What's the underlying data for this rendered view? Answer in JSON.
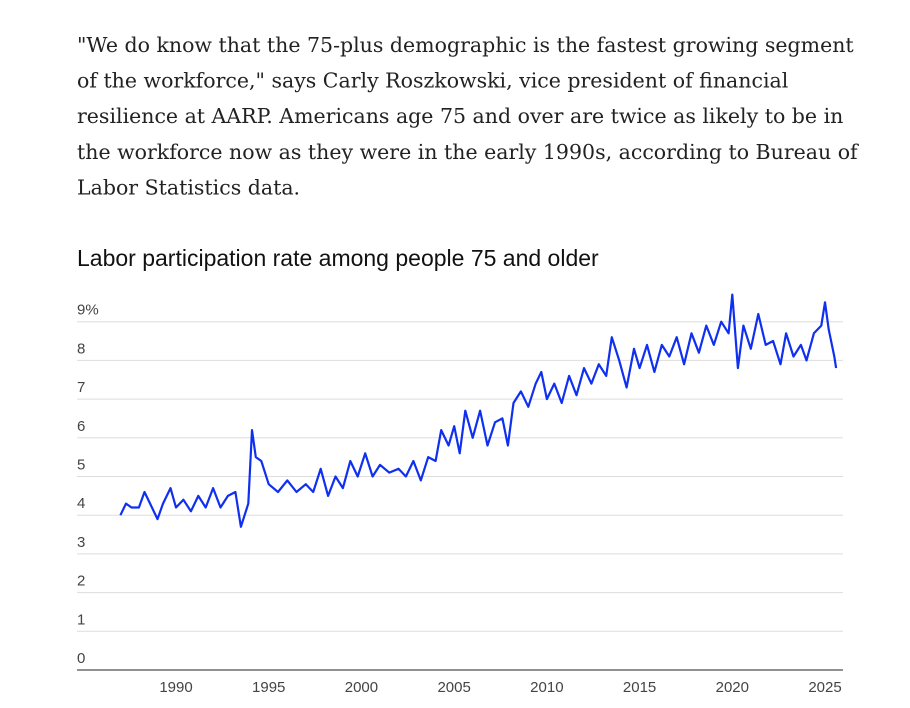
{
  "paragraph": {
    "lines": [
      "\"We do know that the 75-plus demographic is the fastest growing segment",
      "of the workforce,\" says Carly Roszkowski, vice president of financial",
      "resilience at AARP. Americans age 75 and over are twice as likely to be in",
      "the workforce now as they were in the early 1990s, according to Bureau of",
      "Labor Statistics data."
    ]
  },
  "chart_data": {
    "type": "line",
    "title": "Labor participation rate among people 75 and older",
    "x": [
      1987.0,
      1987.3,
      1987.6,
      1988.0,
      1988.3,
      1988.6,
      1989.0,
      1989.3,
      1989.7,
      1990.0,
      1990.4,
      1990.8,
      1991.2,
      1991.6,
      1992.0,
      1992.4,
      1992.8,
      1993.2,
      1993.5,
      1993.9,
      1994.1,
      1994.3,
      1994.6,
      1995.0,
      1995.5,
      1996.0,
      1996.5,
      1997.0,
      1997.4,
      1997.8,
      1998.2,
      1998.6,
      1999.0,
      1999.4,
      1999.8,
      2000.2,
      2000.6,
      2001.0,
      2001.5,
      2002.0,
      2002.4,
      2002.8,
      2003.2,
      2003.6,
      2004.0,
      2004.3,
      2004.7,
      2005.0,
      2005.3,
      2005.6,
      2006.0,
      2006.4,
      2006.8,
      2007.2,
      2007.6,
      2007.9,
      2008.2,
      2008.6,
      2009.0,
      2009.4,
      2009.7,
      2010.0,
      2010.4,
      2010.8,
      2011.2,
      2011.6,
      2012.0,
      2012.4,
      2012.8,
      2013.2,
      2013.5,
      2013.9,
      2014.3,
      2014.7,
      2015.0,
      2015.4,
      2015.8,
      2016.2,
      2016.6,
      2017.0,
      2017.4,
      2017.8,
      2018.2,
      2018.6,
      2019.0,
      2019.4,
      2019.8,
      2020.0,
      2020.3,
      2020.6,
      2021.0,
      2021.4,
      2021.8,
      2022.2,
      2022.6,
      2022.9,
      2023.3,
      2023.7,
      2024.0,
      2024.4,
      2024.8,
      2025.0,
      2025.2,
      2025.5,
      2025.6
    ],
    "series": [
      {
        "color": "#1030f0",
        "values": [
          4.0,
          4.3,
          4.2,
          4.2,
          4.6,
          4.3,
          3.9,
          4.3,
          4.7,
          4.2,
          4.4,
          4.1,
          4.5,
          4.2,
          4.7,
          4.2,
          4.5,
          4.6,
          3.7,
          4.3,
          6.2,
          5.5,
          5.4,
          4.8,
          4.6,
          4.9,
          4.6,
          4.8,
          4.6,
          5.2,
          4.5,
          5.0,
          4.7,
          5.4,
          5.0,
          5.6,
          5.0,
          5.3,
          5.1,
          5.2,
          5.0,
          5.4,
          4.9,
          5.5,
          5.4,
          6.2,
          5.8,
          6.3,
          5.6,
          6.7,
          6.0,
          6.7,
          5.8,
          6.4,
          6.5,
          5.8,
          6.9,
          7.2,
          6.8,
          7.4,
          7.7,
          7.0,
          7.4,
          6.9,
          7.6,
          7.1,
          7.8,
          7.4,
          7.9,
          7.6,
          8.6,
          8.0,
          7.3,
          8.3,
          7.8,
          8.4,
          7.7,
          8.4,
          8.1,
          8.6,
          7.9,
          8.7,
          8.2,
          8.9,
          8.4,
          9.0,
          8.7,
          9.7,
          7.8,
          8.9,
          8.3,
          9.2,
          8.4,
          8.5,
          7.9,
          8.7,
          8.1,
          8.4,
          8.0,
          8.7,
          8.9,
          9.5,
          8.8,
          8.1,
          7.8
        ]
      }
    ],
    "xlim": [
      1984.66,
      2025.97
    ],
    "xticks": [
      1990,
      1995,
      2000,
      2005,
      2010,
      2015,
      2020,
      2025
    ],
    "ylim": [
      0,
      9.8
    ],
    "yticks": [
      0,
      1,
      2,
      3,
      4,
      5,
      6,
      7,
      8,
      {
        "value": 9,
        "label": "9%"
      }
    ],
    "grid": true
  }
}
